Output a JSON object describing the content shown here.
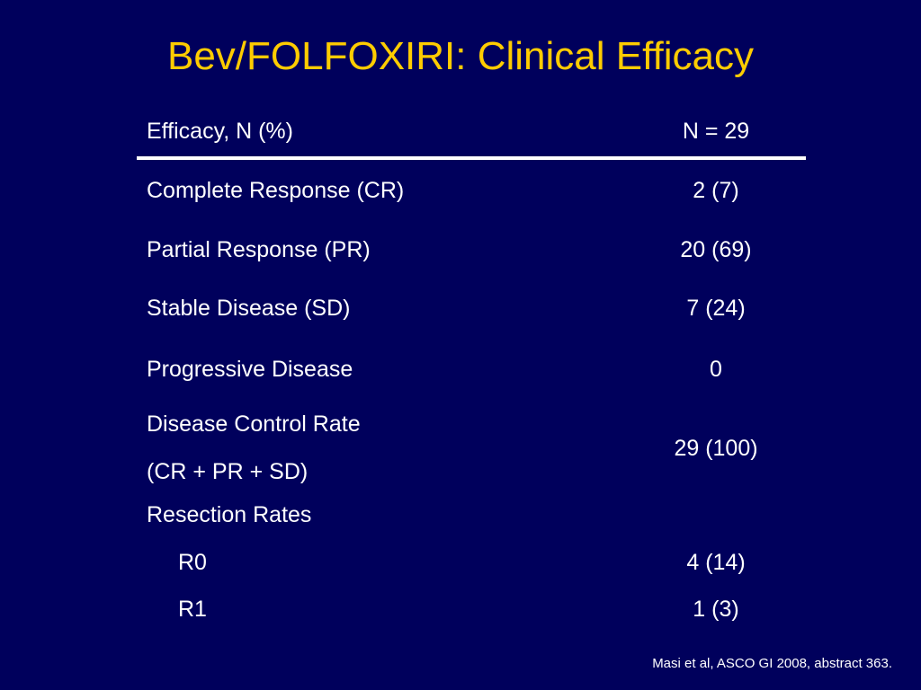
{
  "title": "Bev/FOLFOXIRI: Clinical Efficacy",
  "table": {
    "header": {
      "label": "Efficacy, N (%)",
      "value": "N = 29"
    },
    "rows": [
      {
        "label": "Complete Response (CR)",
        "value": "2 (7)"
      },
      {
        "label": "Partial Response (PR)",
        "value": "20 (69)"
      },
      {
        "label": "Stable Disease (SD)",
        "value": "7 (24)"
      },
      {
        "label": "Progressive Disease",
        "value": "0"
      },
      {
        "label_line1": "Disease Control Rate",
        "label_line2": "(CR + PR + SD)",
        "value": "29 (100)"
      },
      {
        "label": "Resection Rates"
      },
      {
        "label": "R0",
        "value": "4 (14)"
      },
      {
        "label": "R1",
        "value": "1 (3)"
      }
    ]
  },
  "footnote": "Masi et al, ASCO GI 2008, abstract 363.",
  "colors": {
    "background": "#00005c",
    "title": "#ffcc00",
    "text": "#ffffff"
  }
}
